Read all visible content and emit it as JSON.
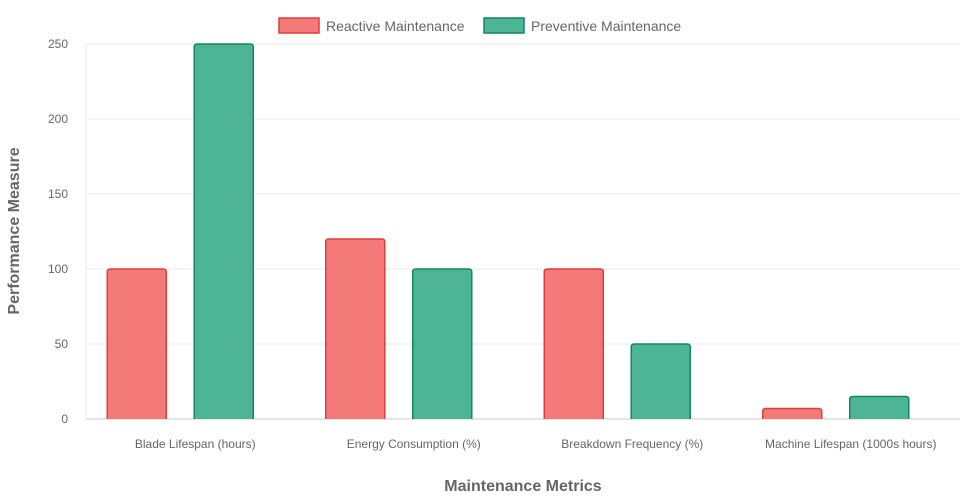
{
  "chart_data": {
    "type": "bar",
    "title": "",
    "xlabel": "Maintenance Metrics",
    "ylabel": "Performance Measure",
    "categories": [
      "Blade Lifespan (hours)",
      "Energy Consumption (%)",
      "Breakdown Frequency (%)",
      "Machine Lifespan (1000s hours)"
    ],
    "series": [
      {
        "name": "Reactive Maintenance",
        "values": [
          100,
          120,
          100,
          7
        ],
        "fill": "#f47a7a",
        "stroke": "#e03c3c"
      },
      {
        "name": "Preventive Maintenance",
        "values": [
          250,
          100,
          50,
          15
        ],
        "fill": "#4db594",
        "stroke": "#13875f"
      }
    ],
    "ylim": [
      0,
      250
    ],
    "yticks": [
      "0",
      "50",
      "100",
      "150",
      "200",
      "250"
    ],
    "grid": true,
    "legend_position": "top"
  }
}
